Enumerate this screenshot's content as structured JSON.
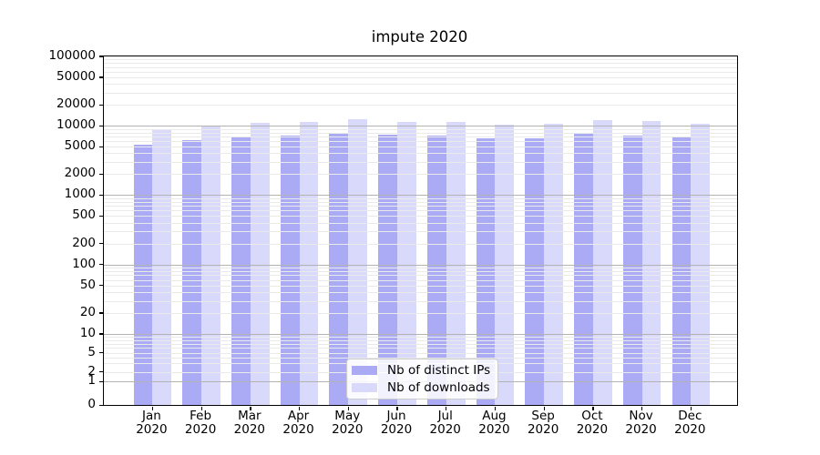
{
  "chart_data": {
    "type": "bar",
    "title": "impute 2020",
    "categories": [
      "Jan",
      "Feb",
      "Mar",
      "Apr",
      "May",
      "Jun",
      "Jul",
      "Aug",
      "Sep",
      "Oct",
      "Nov",
      "Dec"
    ],
    "year": "2020",
    "series": [
      {
        "name": "Nb of distinct IPs",
        "color": "#aaaaf5",
        "values": [
          5300,
          6200,
          7000,
          7300,
          7900,
          7500,
          7200,
          6500,
          6600,
          7700,
          7300,
          6800
        ]
      },
      {
        "name": "Nb of downloads",
        "color": "#d9d9fb",
        "values": [
          8700,
          9700,
          10900,
          11500,
          12400,
          11500,
          11500,
          10400,
          10700,
          12100,
          11600,
          10700
        ]
      }
    ],
    "y_ticks": [
      0,
      1,
      2,
      5,
      10,
      20,
      50,
      100,
      200,
      500,
      1000,
      2000,
      5000,
      10000,
      20000,
      50000,
      100000
    ],
    "y_scale": "symlog",
    "ylim": [
      0,
      100000
    ],
    "grid": true,
    "legend_position": "lower center"
  },
  "colors": {
    "grid_major": "#b3b3b3",
    "grid_minor": "#eaeaea",
    "spine": "#000000"
  }
}
